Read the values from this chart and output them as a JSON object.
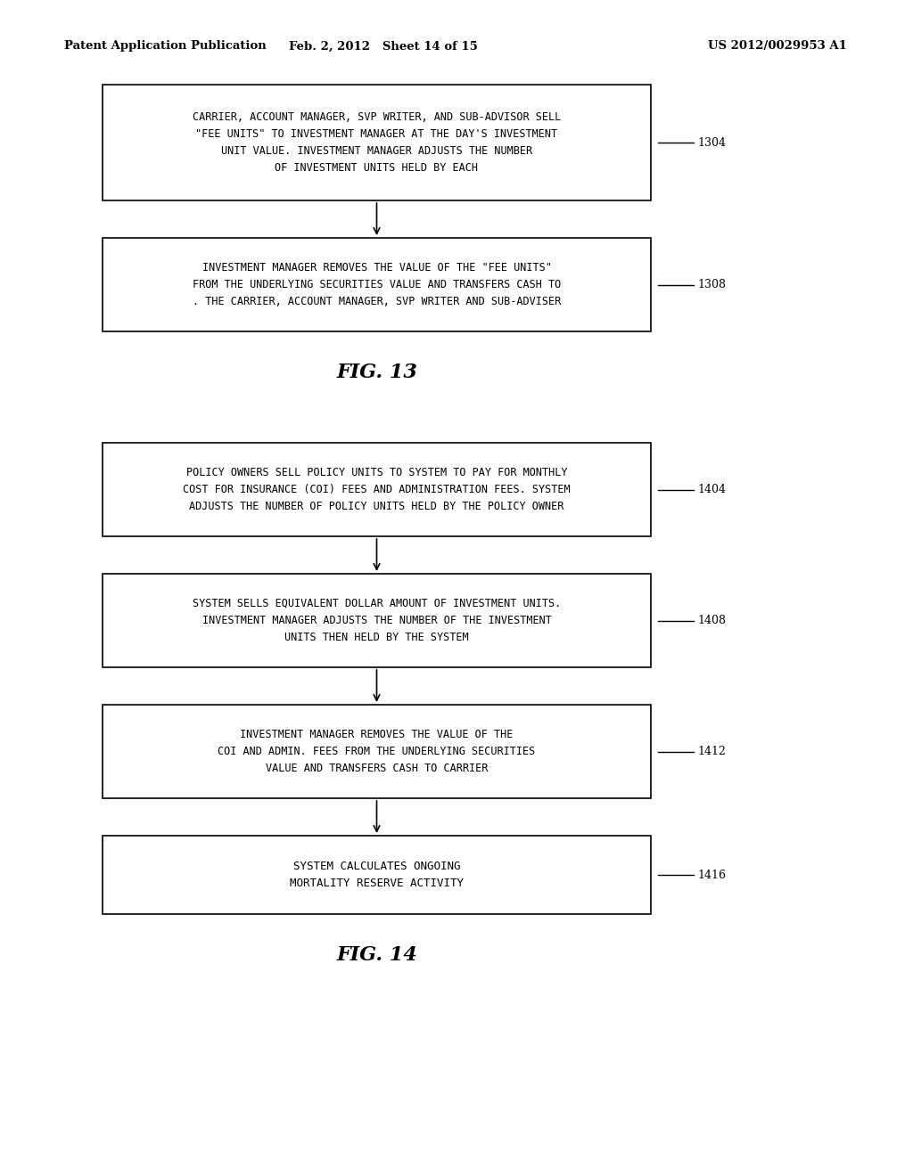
{
  "bg_color": "#ffffff",
  "header_left": "Patent Application Publication",
  "header_mid": "Feb. 2, 2012   Sheet 14 of 15",
  "header_right": "US 2012/0029953 A1",
  "fig13_title": "FIG. 13",
  "fig14_title": "FIG. 14",
  "box1304_text": "CARRIER, ACCOUNT MANAGER, SVP WRITER, AND SUB-ADVISOR SELL\n\"FEE UNITS\" TO INVESTMENT MANAGER AT THE DAY'S INVESTMENT\nUNIT VALUE. INVESTMENT MANAGER ADJUSTS THE NUMBER\nOF INVESTMENT UNITS HELD BY EACH",
  "box1304_ref": "1304",
  "box1308_text": "INVESTMENT MANAGER REMOVES THE VALUE OF THE \"FEE UNITS\"\nFROM THE UNDERLYING SECURITIES VALUE AND TRANSFERS CASH TO\n. THE CARRIER, ACCOUNT MANAGER, SVP WRITER AND SUB-ADVISER",
  "box1308_ref": "1308",
  "box1404_text": "POLICY OWNERS SELL POLICY UNITS TO SYSTEM TO PAY FOR MONTHLY\nCOST FOR INSURANCE (COI) FEES AND ADMINISTRATION FEES. SYSTEM\nADJUSTS THE NUMBER OF POLICY UNITS HELD BY THE POLICY OWNER",
  "box1404_ref": "1404",
  "box1408_text": "SYSTEM SELLS EQUIVALENT DOLLAR AMOUNT OF INVESTMENT UNITS.\nINVESTMENT MANAGER ADJUSTS THE NUMBER OF THE INVESTMENT\nUNITS THEN HELD BY THE SYSTEM",
  "box1408_ref": "1408",
  "box1412_text": "INVESTMENT MANAGER REMOVES THE VALUE OF THE\nCOI AND ADMIN. FEES FROM THE UNDERLYING SECURITIES\nVALUE AND TRANSFERS CASH TO CARRIER",
  "box1412_ref": "1412",
  "box1416_text": "SYSTEM CALCULATES ONGOING\nMORTALITY RESERVE ACTIVITY",
  "box1416_ref": "1416"
}
